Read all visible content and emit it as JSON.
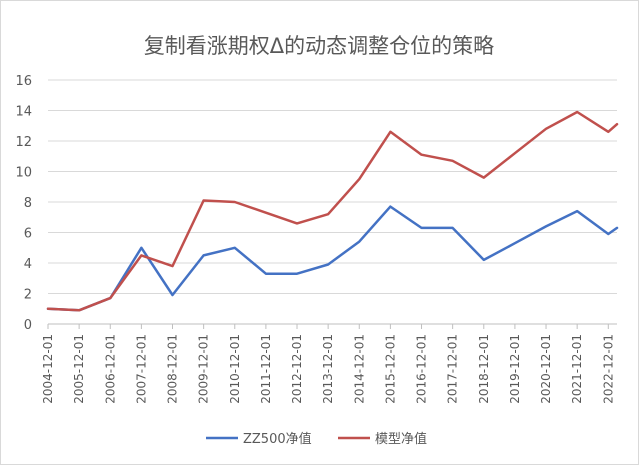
{
  "chart_data": {
    "type": "line",
    "title": "复制看涨期权Δ的动态调整仓位的策略",
    "xlabel": "",
    "ylabel": "",
    "ylim": [
      0,
      16
    ],
    "yticks": [
      0,
      2,
      4,
      6,
      8,
      10,
      12,
      14,
      16
    ],
    "grid": true,
    "legend_position": "bottom",
    "categories": [
      "2004-12-01",
      "2005-12-01",
      "2006-12-01",
      "2007-12-01",
      "2008-12-01",
      "2009-12-01",
      "2010-12-01",
      "2011-12-01",
      "2012-12-01",
      "2013-12-01",
      "2014-12-01",
      "2015-12-01",
      "2016-12-01",
      "2017-12-01",
      "2018-12-01",
      "2019-12-01",
      "2020-12-01",
      "2021-12-01",
      "2022-12-01"
    ],
    "x": [
      2004.92,
      2005.92,
      2006.92,
      2007.92,
      2008.92,
      2009.92,
      2010.92,
      2011.92,
      2012.92,
      2013.92,
      2014.92,
      2015.92,
      2016.92,
      2017.92,
      2018.92,
      2019.92,
      2020.92,
      2021.92,
      2022.92,
      2023.2
    ],
    "series": [
      {
        "name": "ZZ500净值",
        "color": "#4472c4",
        "values": [
          1.0,
          0.9,
          1.7,
          5.0,
          1.9,
          4.5,
          5.0,
          3.3,
          3.3,
          3.9,
          5.4,
          7.7,
          6.3,
          6.3,
          4.2,
          5.3,
          6.4,
          7.4,
          5.9,
          6.3
        ]
      },
      {
        "name": "模型净值",
        "color": "#c0504d",
        "values": [
          1.0,
          0.9,
          1.7,
          4.5,
          3.8,
          8.1,
          8.0,
          7.3,
          6.6,
          7.2,
          9.5,
          12.6,
          11.1,
          10.7,
          9.6,
          11.2,
          12.8,
          13.9,
          12.6,
          13.1
        ]
      }
    ]
  }
}
